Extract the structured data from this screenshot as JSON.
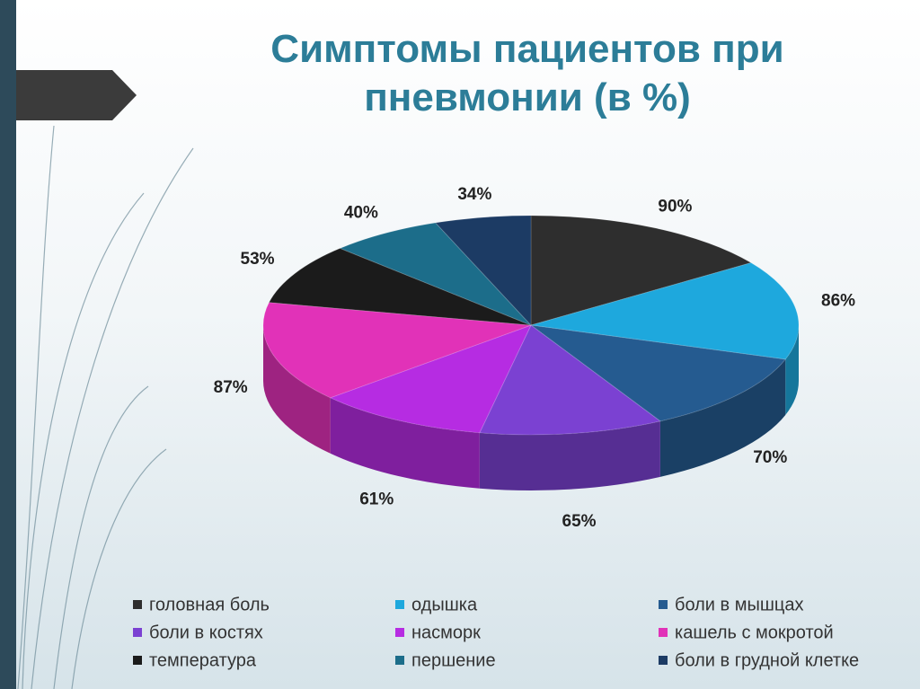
{
  "chart_data": {
    "type": "pie",
    "title": "Симптомы пациентов при пневмонии (в %)",
    "categories": [
      "головная боль",
      "одышка",
      "боли в мышцах",
      "боли в костях",
      "насморк",
      "кашель с мокротой",
      "температура",
      "першение",
      "боли в грудной клетке"
    ],
    "values": [
      90,
      86,
      70,
      65,
      61,
      87,
      53,
      40,
      34
    ],
    "value_labels": [
      "90%",
      "86%",
      "70%",
      "65%",
      "61%",
      "87%",
      "53%",
      "40%",
      "34%"
    ],
    "colors": [
      "#2e2e2e",
      "#1ea8dd",
      "#255b90",
      "#7b41d2",
      "#b62ce2",
      "#e132b8",
      "#1b1b1b",
      "#1c6d8a",
      "#1c3b64"
    ],
    "legend": "bottom"
  }
}
